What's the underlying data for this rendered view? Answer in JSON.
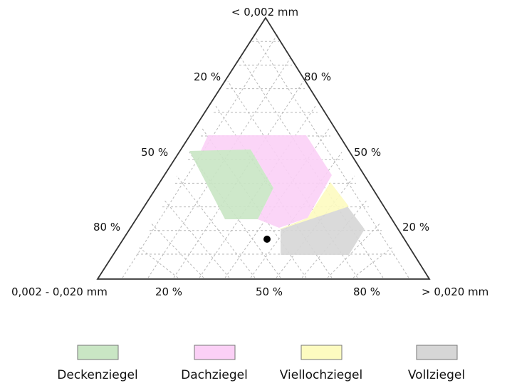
{
  "apex_labels": {
    "top": "< 0,002 mm",
    "left": "0,002 - 0,020 mm",
    "right": "> 0,020 mm"
  },
  "left_side_ticks": [
    "20 %",
    "50 %",
    "80 %"
  ],
  "right_side_ticks": [
    "80 %",
    "50 %",
    "20 %"
  ],
  "bottom_ticks": [
    "20 %",
    "50 %",
    "80 %"
  ],
  "regions": [
    {
      "name": "Deckenziegel",
      "color": "#c9e6c4"
    },
    {
      "name": "Dachziegel",
      "color": "#fbd0f6"
    },
    {
      "name": "Viellochziegel",
      "color": "#fdfbc0"
    },
    {
      "name": "Vollziegel",
      "color": "#d6d6d6"
    }
  ],
  "legend": [
    "Deckenziegel",
    "Dachziegel",
    "Viellochziegel",
    "Vollziegel"
  ]
}
